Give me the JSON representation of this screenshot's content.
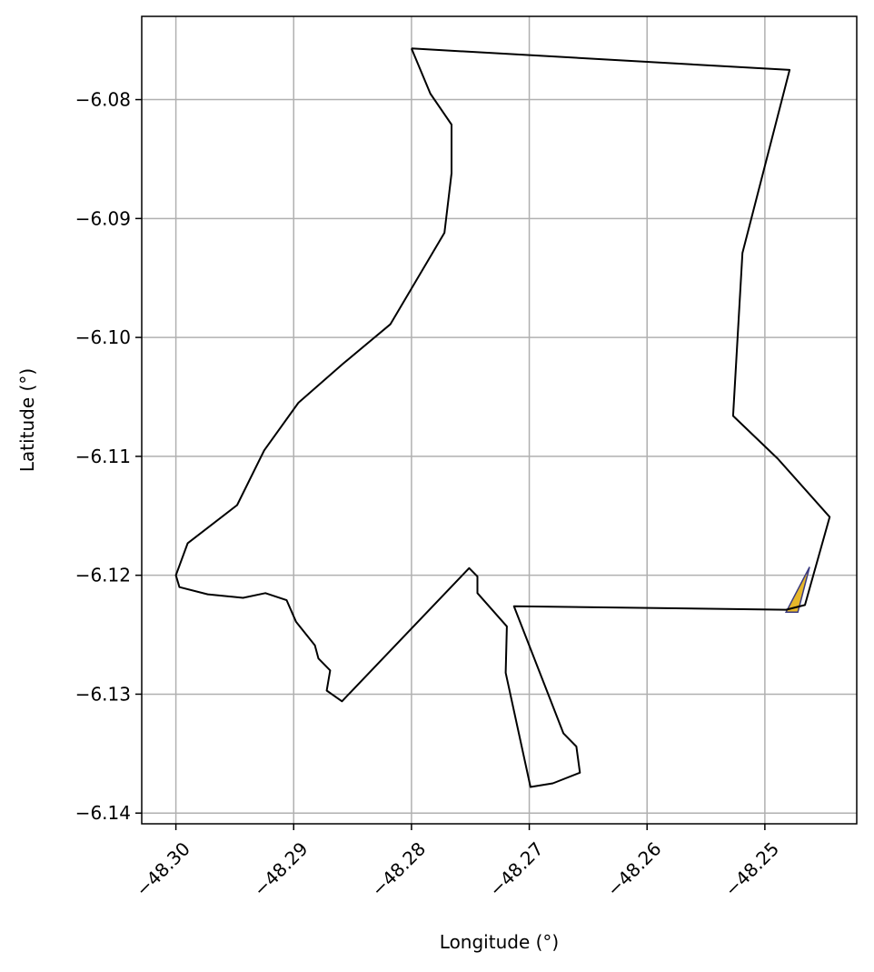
{
  "chart_data": {
    "type": "map",
    "xlabel": "Longitude (°)",
    "ylabel": "Latitude (°)",
    "xlim": [
      -48.3029,
      -48.2422
    ],
    "ylim": [
      -6.1409,
      -6.073
    ],
    "grid": true,
    "x_ticks": [
      {
        "value": -48.3,
        "label": "−48.30"
      },
      {
        "value": -48.29,
        "label": "−48.29"
      },
      {
        "value": -48.28,
        "label": "−48.28"
      },
      {
        "value": -48.27,
        "label": "−48.27"
      },
      {
        "value": -48.26,
        "label": "−48.26"
      },
      {
        "value": -48.25,
        "label": "−48.25"
      }
    ],
    "y_ticks": [
      {
        "value": -6.08,
        "label": "−6.08"
      },
      {
        "value": -6.09,
        "label": "−6.09"
      },
      {
        "value": -6.1,
        "label": "−6.10"
      },
      {
        "value": -6.11,
        "label": "−6.11"
      },
      {
        "value": -6.12,
        "label": "−6.12"
      },
      {
        "value": -6.13,
        "label": "−6.13"
      },
      {
        "value": -6.14,
        "label": "−6.14"
      }
    ],
    "boundary": {
      "stroke": "#000000",
      "fill": "none",
      "points": [
        [
          -48.28,
          -6.0757
        ],
        [
          -48.2479,
          -6.0775
        ],
        [
          -48.2519,
          -6.0929
        ],
        [
          -48.2527,
          -6.1066
        ],
        [
          -48.2489,
          -6.1102
        ],
        [
          -48.2445,
          -6.1151
        ],
        [
          -48.2466,
          -6.1225
        ],
        [
          -48.2482,
          -6.1229
        ],
        [
          -48.2713,
          -6.1226
        ],
        [
          -48.2671,
          -6.1333
        ],
        [
          -48.266,
          -6.1344
        ],
        [
          -48.2657,
          -6.1366
        ],
        [
          -48.268,
          -6.1375
        ],
        [
          -48.2699,
          -6.1378
        ],
        [
          -48.272,
          -6.1282
        ],
        [
          -48.2719,
          -6.1243
        ],
        [
          -48.2744,
          -6.1215
        ],
        [
          -48.2744,
          -6.1201
        ],
        [
          -48.2751,
          -6.1194
        ],
        [
          -48.2859,
          -6.1306
        ],
        [
          -48.2872,
          -6.1297
        ],
        [
          -48.2869,
          -6.128
        ],
        [
          -48.2879,
          -6.127
        ],
        [
          -48.2882,
          -6.1259
        ],
        [
          -48.2898,
          -6.1239
        ],
        [
          -48.2906,
          -6.1221
        ],
        [
          -48.2924,
          -6.1215
        ],
        [
          -48.2943,
          -6.1219
        ],
        [
          -48.2973,
          -6.1216
        ],
        [
          -48.2997,
          -6.121
        ],
        [
          -48.3,
          -6.12
        ],
        [
          -48.299,
          -6.1173
        ],
        [
          -48.2948,
          -6.1141
        ],
        [
          -48.2925,
          -6.1095
        ],
        [
          -48.2896,
          -6.1055
        ],
        [
          -48.2858,
          -6.1022
        ],
        [
          -48.2818,
          -6.0989
        ],
        [
          -48.2772,
          -6.0912
        ],
        [
          -48.2766,
          -6.0862
        ],
        [
          -48.2766,
          -6.0821
        ],
        [
          -48.2784,
          -6.0795
        ],
        [
          -48.28,
          -6.0757
        ]
      ]
    },
    "highlight": {
      "fill": "#e6b72a",
      "stroke": "#3a3a80",
      "points": [
        [
          -48.2482,
          -6.1231
        ],
        [
          -48.2472,
          -6.1231
        ],
        [
          -48.2462,
          -6.1193
        ],
        [
          -48.2482,
          -6.1231
        ]
      ]
    }
  }
}
